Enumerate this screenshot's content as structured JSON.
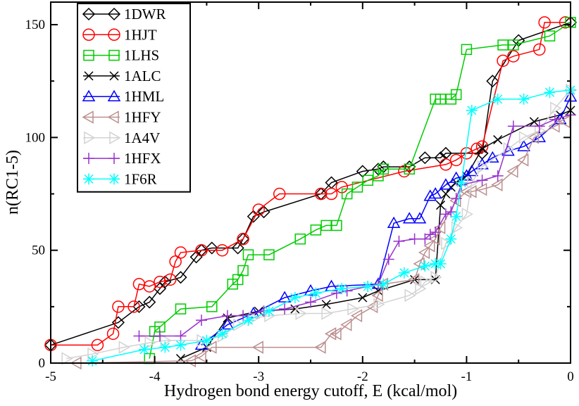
{
  "chart_data": {
    "type": "line",
    "xlabel": "Hydrogen bond energy cutoff, E (kcal/mol)",
    "ylabel": "n(RC1-5)",
    "xlim": [
      -5,
      0
    ],
    "ylim": [
      0,
      160
    ],
    "x_ticks": [
      "-5",
      "-4",
      "-3",
      "-2",
      "-1",
      "0"
    ],
    "y_ticks": [
      "0",
      "50",
      "100",
      "150"
    ],
    "legend_position": "top-left",
    "grid": false,
    "series": [
      {
        "name": "1DWR",
        "color": "#000000",
        "marker": "diamond",
        "x": [
          -5.0,
          -4.35,
          -4.15,
          -4.05,
          -3.95,
          -3.9,
          -3.75,
          -3.6,
          -3.55,
          -3.45,
          -3.2,
          -3.15,
          -3.05,
          -2.95,
          -2.4,
          -2.3,
          -2.0,
          -1.85,
          -1.8,
          -1.55,
          -1.4,
          -1.25,
          -1.2,
          -0.85,
          -0.75,
          -0.5,
          0.0
        ],
        "y": [
          8,
          18,
          25,
          27,
          33,
          36,
          38,
          47,
          50,
          51,
          51,
          55,
          65,
          67,
          75,
          80,
          85,
          86,
          87,
          87,
          91,
          91,
          93,
          93,
          125,
          143,
          151
        ]
      },
      {
        "name": "1HJT",
        "color": "#ff0000",
        "marker": "circle",
        "x": [
          -5.0,
          -4.55,
          -4.4,
          -4.35,
          -4.2,
          -4.15,
          -4.05,
          -3.95,
          -3.85,
          -3.8,
          -3.75,
          -3.55,
          -3.35,
          -3.15,
          -3.0,
          -2.8,
          -2.4,
          -2.3,
          -2.2,
          -1.6,
          -1.2,
          -1.1,
          -1.0,
          -0.9,
          -0.85,
          -0.65,
          -0.55,
          -0.3,
          -0.25,
          -0.05
        ],
        "y": [
          8,
          8,
          13,
          25,
          25,
          35,
          34,
          36,
          37,
          45,
          49,
          50,
          50,
          55,
          68,
          75,
          75,
          75,
          78,
          85,
          88,
          90,
          93,
          95,
          96,
          134,
          136,
          139,
          151,
          151
        ]
      },
      {
        "name": "1LHS",
        "color": "#00cc00",
        "marker": "square",
        "x": [
          -4.05,
          -4.0,
          -3.95,
          -3.75,
          -3.45,
          -3.25,
          -3.2,
          -3.15,
          -3.1,
          -2.9,
          -2.6,
          -2.45,
          -2.35,
          -2.25,
          -2.15,
          -2.05,
          -1.95,
          -1.85,
          -1.8,
          -1.55,
          -1.3,
          -1.25,
          -1.15,
          -1.1,
          -1.0,
          -0.65,
          -0.55,
          -0.2,
          0.0
        ],
        "y": [
          2,
          14,
          16,
          24,
          25,
          35,
          37,
          41,
          48,
          48,
          55,
          59,
          61,
          61,
          75,
          78,
          81,
          83,
          86,
          86,
          117,
          117,
          117,
          119,
          139,
          141,
          141,
          145,
          151
        ]
      },
      {
        "name": "1ALC",
        "color": "#000000",
        "marker": "x",
        "x": [
          -3.75,
          -3.5,
          -3.3,
          -3.0,
          -2.65,
          -2.35,
          -2.0,
          -1.85,
          -1.5,
          -1.3,
          -1.25,
          -1.2,
          -1.15,
          -1.1,
          -1.0,
          -0.85,
          -0.7,
          -0.35,
          -0.1,
          0.0
        ],
        "y": [
          2,
          7,
          20,
          23,
          24,
          26,
          29,
          32,
          37,
          37,
          70,
          75,
          78,
          80,
          83,
          95,
          99,
          107,
          110,
          112
        ]
      },
      {
        "name": "1HML",
        "color": "#0000ff",
        "marker": "triangle-up",
        "x": [
          -3.55,
          -3.3,
          -3.05,
          -2.75,
          -2.5,
          -2.3,
          -1.85,
          -1.7,
          -1.55,
          -1.45,
          -1.35,
          -1.3,
          -1.2,
          -1.1,
          -1.0,
          -0.95,
          -0.85,
          -0.75,
          -0.6,
          -0.45,
          -0.3,
          -0.1,
          0.0
        ],
        "y": [
          8,
          17,
          22,
          29,
          32,
          34,
          35,
          62,
          64,
          64,
          74,
          75,
          79,
          82,
          83,
          85,
          88,
          91,
          94,
          96,
          100,
          108,
          118
        ]
      },
      {
        "name": "1HFY",
        "color": "#bc8f8f",
        "marker": "triangle-left",
        "x": [
          -4.75,
          -3.65,
          -3.55,
          -3.45,
          -3.0,
          -2.4,
          -2.3,
          -2.25,
          -2.15,
          -2.05,
          -1.9,
          -1.85,
          -1.8,
          -1.5,
          -1.45,
          -1.4,
          -1.35,
          -1.3,
          -1.25,
          -1.1,
          -1.0,
          -0.95,
          -0.85,
          -0.7,
          -0.55,
          -0.45,
          -0.35,
          -0.15,
          -0.05
        ],
        "y": [
          0,
          1,
          3,
          7,
          7,
          7,
          13,
          13,
          17,
          21,
          25,
          30,
          35,
          37,
          44,
          49,
          52,
          55,
          60,
          72,
          76,
          76,
          77,
          79,
          85,
          90,
          100,
          105,
          107
        ]
      },
      {
        "name": "1A4V",
        "color": "#d3d3d3",
        "marker": "triangle-right",
        "x": [
          -4.85,
          -4.6,
          -4.3,
          -4.05,
          -3.9,
          -3.55,
          -3.35,
          -3.2,
          -3.05,
          -2.9,
          -2.6,
          -2.35,
          -2.1,
          -1.85,
          -1.55,
          -1.45,
          -1.4,
          -1.3,
          -1.2,
          -1.1,
          -1.0,
          -0.95,
          -0.85,
          -0.6,
          -0.45,
          -0.3,
          -0.15,
          0.0
        ],
        "y": [
          2,
          4,
          7,
          9,
          10,
          10,
          12,
          17,
          20,
          21,
          22,
          22,
          24,
          26,
          30,
          33,
          36,
          38,
          53,
          60,
          66,
          80,
          87,
          95,
          100,
          103,
          113,
          121
        ]
      },
      {
        "name": "1HFX",
        "color": "#9932cc",
        "marker": "plus",
        "x": [
          -4.15,
          -3.95,
          -3.75,
          -3.55,
          -3.3,
          -3.15,
          -2.95,
          -2.75,
          -2.5,
          -2.25,
          -2.15,
          -1.95,
          -1.85,
          -1.75,
          -1.65,
          -1.5,
          -1.4,
          -1.35,
          -1.3,
          -1.2,
          -1.15,
          -1.1,
          -1.05,
          -0.85,
          -0.7,
          -0.55,
          -0.3,
          -0.15,
          0.0
        ],
        "y": [
          12,
          12,
          12,
          19,
          21,
          21,
          23,
          24,
          27,
          31,
          32,
          34,
          35,
          46,
          54,
          55,
          55,
          57,
          58,
          66,
          67,
          73,
          79,
          81,
          83,
          105,
          105,
          108,
          110
        ]
      },
      {
        "name": "1F6R",
        "color": "#00ffff",
        "marker": "asterisk",
        "x": [
          -4.6,
          -4.1,
          -3.9,
          -3.75,
          -3.5,
          -3.35,
          -3.1,
          -2.9,
          -2.65,
          -2.45,
          -2.2,
          -1.95,
          -1.8,
          -1.6,
          -1.4,
          -1.3,
          -1.25,
          -1.15,
          -1.1,
          -1.05,
          -0.95,
          -0.7,
          -0.45,
          -0.2,
          0.0
        ],
        "y": [
          1,
          6,
          7,
          8,
          10,
          13,
          19,
          23,
          29,
          31,
          33,
          34,
          35,
          40,
          43,
          44,
          44,
          55,
          65,
          80,
          112,
          117,
          117,
          120,
          121
        ]
      }
    ]
  }
}
